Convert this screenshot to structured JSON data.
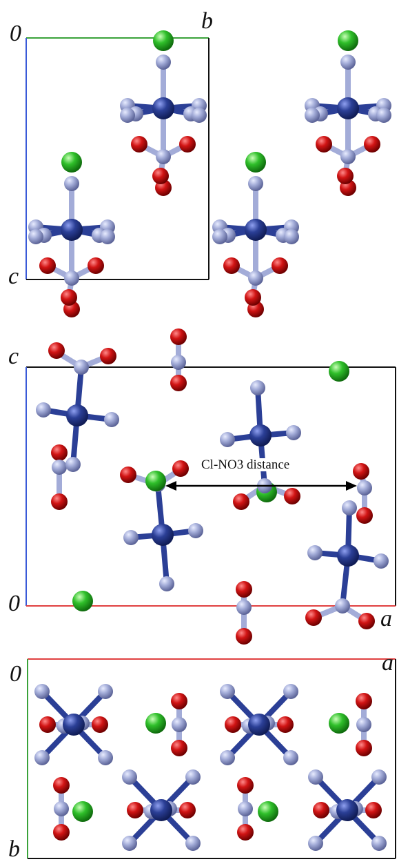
{
  "panels": [
    {
      "id": "top",
      "labels": {
        "origin": "0",
        "corner": "b",
        "side": "c"
      }
    },
    {
      "id": "middle",
      "labels": {
        "origin": "0",
        "corner": "c",
        "side": "a"
      },
      "annotation": "Cl-NO3 distance"
    },
    {
      "id": "bottom",
      "labels": {
        "origin": "0",
        "corner": "a",
        "side": "b"
      }
    }
  ],
  "atom_colors": {
    "chlorine": "#2fbf2a",
    "nitrogen": "#a3acd8",
    "cobalt": "#2b3f96",
    "oxygen": "#d11414"
  },
  "axis_colors": {
    "a": "#e04040",
    "b": "#3aa23a",
    "c": "#3a5ad8"
  }
}
